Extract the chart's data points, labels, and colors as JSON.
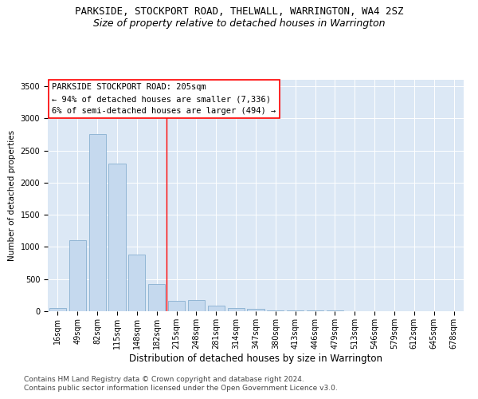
{
  "title": "PARKSIDE, STOCKPORT ROAD, THELWALL, WARRINGTON, WA4 2SZ",
  "subtitle": "Size of property relative to detached houses in Warrington",
  "xlabel": "Distribution of detached houses by size in Warrington",
  "ylabel": "Number of detached properties",
  "categories": [
    "16sqm",
    "49sqm",
    "82sqm",
    "115sqm",
    "148sqm",
    "182sqm",
    "215sqm",
    "248sqm",
    "281sqm",
    "314sqm",
    "347sqm",
    "380sqm",
    "413sqm",
    "446sqm",
    "479sqm",
    "513sqm",
    "546sqm",
    "579sqm",
    "612sqm",
    "645sqm",
    "678sqm"
  ],
  "values": [
    50,
    1100,
    2750,
    2300,
    880,
    420,
    160,
    175,
    90,
    55,
    40,
    15,
    12,
    8,
    10,
    5,
    4,
    3,
    2,
    2,
    1
  ],
  "bar_color": "#c5d9ee",
  "bar_edge_color": "#88afd0",
  "vline_x": 6,
  "vline_color": "red",
  "annotation_text": "PARKSIDE STOCKPORT ROAD: 205sqm\n← 94% of detached houses are smaller (7,336)\n6% of semi-detached houses are larger (494) →",
  "annotation_box_color": "white",
  "annotation_box_edge_color": "red",
  "ylim": [
    0,
    3600
  ],
  "yticks": [
    0,
    500,
    1000,
    1500,
    2000,
    2500,
    3000,
    3500
  ],
  "background_color": "#dce8f5",
  "footer1": "Contains HM Land Registry data © Crown copyright and database right 2024.",
  "footer2": "Contains public sector information licensed under the Open Government Licence v3.0.",
  "title_fontsize": 9,
  "subtitle_fontsize": 9,
  "xlabel_fontsize": 8.5,
  "ylabel_fontsize": 7.5,
  "tick_fontsize": 7,
  "annotation_fontsize": 7.5,
  "footer_fontsize": 6.5
}
